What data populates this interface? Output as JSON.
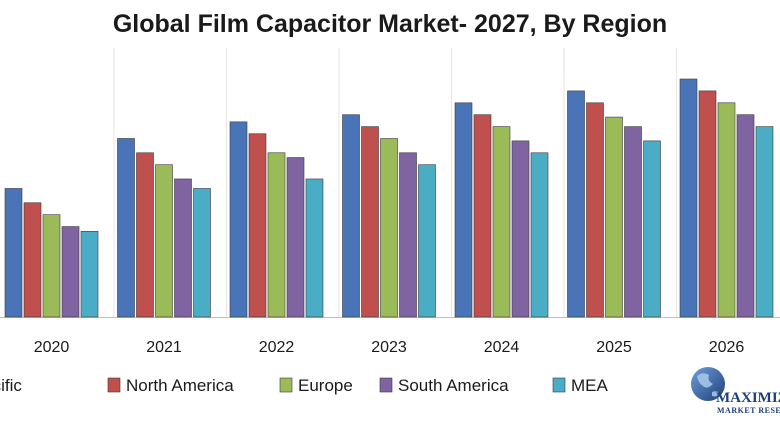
{
  "chart_data": {
    "type": "bar",
    "title": "Global Film Capacitor Market- 2027, By Region",
    "xlabel": "",
    "ylabel": "",
    "ylim": [
      0,
      1
    ],
    "grid": false,
    "legend_position": "bottom",
    "categories": [
      "2020",
      "2021",
      "2022",
      "2023",
      "2024",
      "2025",
      "2026"
    ],
    "series": [
      {
        "name": "Asia Pacific",
        "color": "#4a74b8",
        "values": [
          0.54,
          0.75,
          0.82,
          0.85,
          0.9,
          0.95,
          1.0
        ]
      },
      {
        "name": "North America",
        "color": "#c0504d",
        "values": [
          0.48,
          0.69,
          0.77,
          0.8,
          0.85,
          0.9,
          0.95
        ]
      },
      {
        "name": "Europe",
        "color": "#9bbb59",
        "values": [
          0.43,
          0.64,
          0.69,
          0.75,
          0.8,
          0.84,
          0.9
        ]
      },
      {
        "name": "South America",
        "color": "#8064a2",
        "values": [
          0.38,
          0.58,
          0.67,
          0.69,
          0.74,
          0.8,
          0.85
        ]
      },
      {
        "name": "MEA",
        "color": "#4bacc6",
        "values": [
          0.36,
          0.54,
          0.58,
          0.64,
          0.69,
          0.74,
          0.8
        ]
      }
    ]
  },
  "legend": {
    "labels": [
      "Asia Pacific",
      "North America",
      "Europe",
      "South America",
      "MEA"
    ]
  },
  "logo": {
    "name": "MAXIMIZE",
    "tagline": "MARKET RESEARCH"
  }
}
